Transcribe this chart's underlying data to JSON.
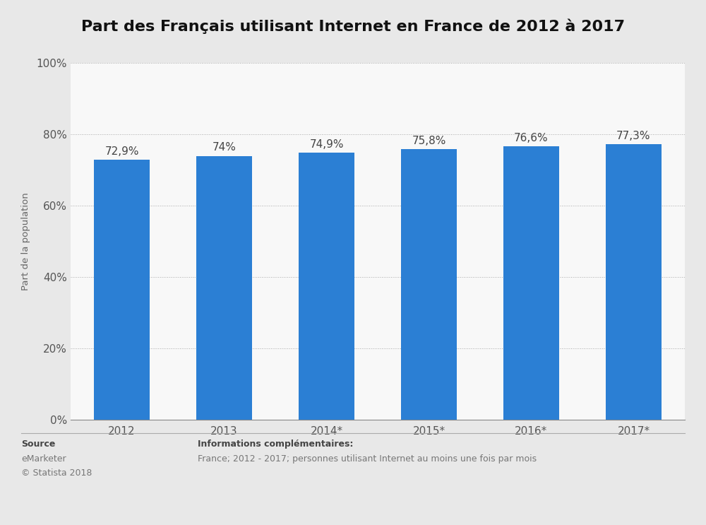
{
  "title": "Part des Français utilisant Internet en France de 2012 à 2017",
  "categories": [
    "2012",
    "2013",
    "2014*",
    "2015*",
    "2016*",
    "2017*"
  ],
  "values": [
    72.9,
    74.0,
    74.9,
    75.8,
    76.6,
    77.3
  ],
  "labels": [
    "72,9%",
    "74%",
    "74,9%",
    "75,8%",
    "76,6%",
    "77,3%"
  ],
  "bar_color": "#2B7FD4",
  "background_color": "#E8E8E8",
  "plot_background_color": "#F8F8F8",
  "ylabel": "Part de la population",
  "ylim": [
    0,
    100
  ],
  "yticks": [
    0,
    20,
    40,
    60,
    80,
    100
  ],
  "ytick_labels": [
    "0%",
    "20%",
    "40%",
    "60%",
    "80%",
    "100%"
  ],
  "source_label": "Source",
  "source_value": "eMarketer",
  "source_copyright": "© Statista 2018",
  "info_label": "Informations complémentaires:",
  "info_value": "France; 2012 - 2017; personnes utilisant Internet au moins une fois par mois",
  "title_fontsize": 16,
  "label_fontsize": 11,
  "tick_fontsize": 11,
  "ylabel_fontsize": 9.5,
  "footer_fontsize": 9
}
